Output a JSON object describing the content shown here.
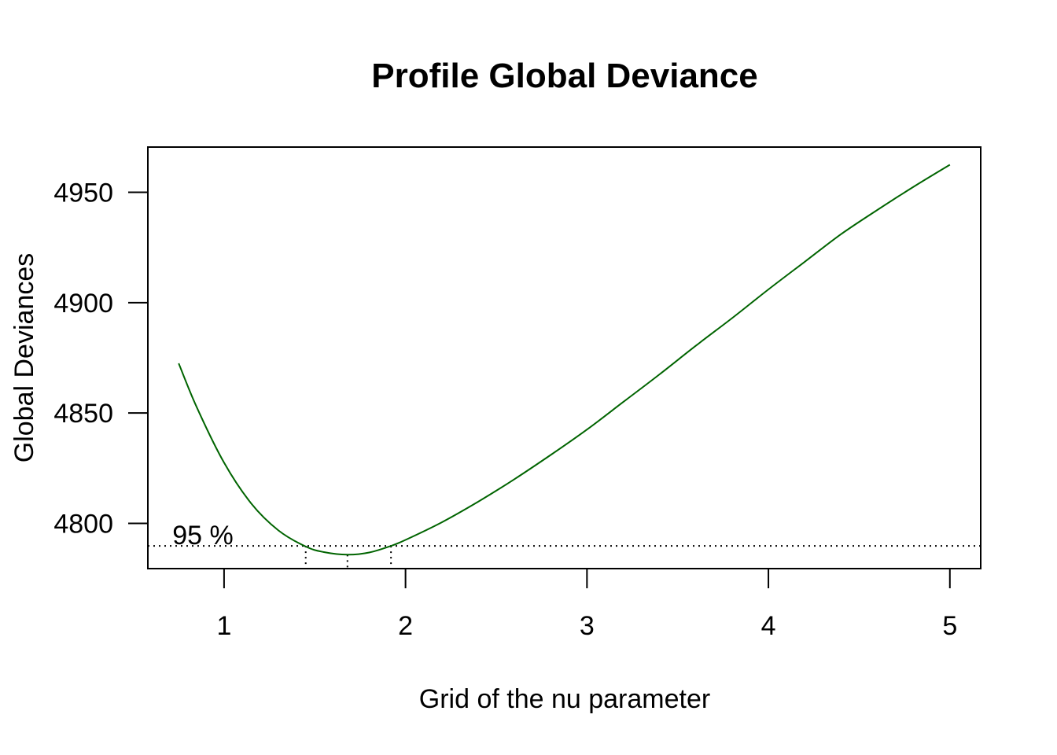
{
  "chart_data": {
    "type": "line",
    "title": "Profile Global Deviance",
    "xlabel": "Grid of the nu parameter",
    "ylabel": "Global Deviances",
    "xlim": [
      0.58,
      5.17
    ],
    "ylim": [
      4779.5,
      4970.5
    ],
    "x_ticks": [
      1,
      2,
      3,
      4,
      5
    ],
    "x_tick_labels": [
      "1",
      "2",
      "3",
      "4",
      "5"
    ],
    "y_ticks": [
      4800,
      4850,
      4900,
      4950
    ],
    "y_tick_labels": [
      "4800",
      "4850",
      "4900",
      "4950"
    ],
    "grid": false,
    "series": [
      {
        "color": "#006400",
        "x": [
          0.75,
          0.85,
          1.0,
          1.15,
          1.3,
          1.45,
          1.55,
          1.68,
          1.8,
          1.92,
          2.0,
          2.2,
          2.4,
          2.6,
          2.8,
          3.0,
          3.2,
          3.4,
          3.6,
          3.8,
          4.0,
          4.2,
          4.4,
          4.6,
          4.8,
          5.0
        ],
        "y": [
          4872.5,
          4852.5,
          4827.5,
          4809.0,
          4796.8,
          4789.5,
          4787.0,
          4785.8,
          4786.8,
          4789.8,
          4792.5,
          4800.5,
          4809.8,
          4820.0,
          4831.0,
          4842.5,
          4855.0,
          4867.5,
          4880.5,
          4893.0,
          4906.0,
          4918.5,
          4931.0,
          4942.0,
          4952.5,
          4962.5
        ]
      }
    ],
    "reference": {
      "label": "95 %",
      "y": 4789.8,
      "ci_lower": 1.45,
      "minimum_x": 1.68,
      "ci_upper": 1.92,
      "line_style": "dotted"
    }
  }
}
